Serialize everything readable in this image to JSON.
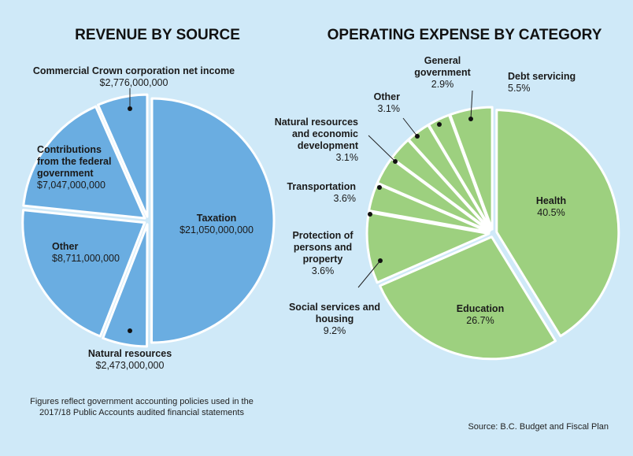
{
  "chart_data": [
    {
      "type": "pie",
      "title": "REVENUE BY SOURCE",
      "color": "#6aade1",
      "categories": [
        "Taxation",
        "Natural resources",
        "Other",
        "Contributions from the federal government",
        "Commercial Crown corporation net income"
      ],
      "values": [
        21050000000,
        2473000000,
        8711000000,
        7047000000,
        2776000000
      ],
      "value_labels": [
        "$21,050,000,000",
        "$2,473,000,000",
        "$8,711,000,000",
        "$7,047,000,000",
        "$2,776,000,000"
      ],
      "note": "Figures reflect government accounting policies used in the 2017/18 Public Accounts audited financial statements"
    },
    {
      "type": "pie",
      "title": "OPERATING EXPENSE BY CATEGORY",
      "color": "#9dd07f",
      "categories": [
        "Health",
        "Education",
        "Social services and housing",
        "Protection of persons and property",
        "Transportation",
        "Natural resources and economic development",
        "Other",
        "General government",
        "Debt servicing"
      ],
      "values": [
        40.5,
        26.7,
        9.2,
        3.6,
        3.6,
        3.1,
        3.1,
        2.9,
        5.5
      ],
      "value_labels": [
        "40.5%",
        "26.7%",
        "9.2%",
        "3.6%",
        "3.6%",
        "3.1%",
        "3.1%",
        "2.9%",
        "5.5%"
      ],
      "source": "Source: B.C. Budget and Fiscal Plan"
    }
  ]
}
